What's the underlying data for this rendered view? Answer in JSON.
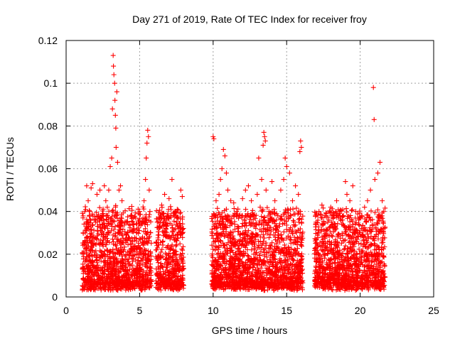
{
  "chart_data": {
    "type": "scatter",
    "title": "Day 271 of 2019, Rate Of TEC Index for receiver froy",
    "xlabel": "GPS time / hours",
    "ylabel": "ROTI / TECUs",
    "xlim": [
      0,
      25
    ],
    "ylim": [
      0,
      0.12
    ],
    "xticks": [
      0,
      5,
      10,
      15,
      20,
      25
    ],
    "xtick_labels": [
      "0",
      "5",
      "10",
      "15",
      "20",
      "25"
    ],
    "yticks": [
      0,
      0.02,
      0.04,
      0.06,
      0.08,
      0.1,
      0.12
    ],
    "ytick_labels": [
      "0",
      "0.02",
      "0.04",
      "0.06",
      "0.08",
      "0.1",
      "0.12"
    ],
    "grid": true,
    "marker": "plus",
    "color": "#ff0000",
    "data_segments_hours": [
      [
        1.1,
        5.8
      ],
      [
        6.1,
        8.0
      ],
      [
        9.9,
        16.1
      ],
      [
        16.9,
        21.7
      ]
    ],
    "series": [
      {
        "name": "ROTI",
        "points": [
          [
            1.2,
            0.012
          ],
          [
            1.3,
            0.03
          ],
          [
            1.4,
            0.052
          ],
          [
            1.5,
            0.045
          ],
          [
            1.6,
            0.04
          ],
          [
            1.7,
            0.051
          ],
          [
            1.8,
            0.053
          ],
          [
            1.9,
            0.028
          ],
          [
            2.0,
            0.035
          ],
          [
            2.1,
            0.048
          ],
          [
            2.3,
            0.05
          ],
          [
            2.5,
            0.038
          ],
          [
            2.6,
            0.052
          ],
          [
            2.7,
            0.045
          ],
          [
            2.8,
            0.042
          ],
          [
            2.9,
            0.05
          ],
          [
            3.0,
            0.061
          ],
          [
            3.1,
            0.065
          ],
          [
            3.15,
            0.088
          ],
          [
            3.2,
            0.113
          ],
          [
            3.22,
            0.108
          ],
          [
            3.25,
            0.104
          ],
          [
            3.3,
            0.1
          ],
          [
            3.32,
            0.092
          ],
          [
            3.35,
            0.085
          ],
          [
            3.38,
            0.079
          ],
          [
            3.4,
            0.07
          ],
          [
            3.45,
            0.096
          ],
          [
            3.5,
            0.063
          ],
          [
            3.6,
            0.05
          ],
          [
            3.7,
            0.052
          ],
          [
            3.8,
            0.045
          ],
          [
            4.0,
            0.035
          ],
          [
            4.2,
            0.03
          ],
          [
            4.4,
            0.038
          ],
          [
            4.6,
            0.034
          ],
          [
            4.8,
            0.03
          ],
          [
            5.0,
            0.04
          ],
          [
            5.2,
            0.028
          ],
          [
            5.3,
            0.045
          ],
          [
            5.4,
            0.055
          ],
          [
            5.45,
            0.065
          ],
          [
            5.5,
            0.072
          ],
          [
            5.55,
            0.078
          ],
          [
            5.6,
            0.075
          ],
          [
            5.65,
            0.05
          ],
          [
            5.7,
            0.04
          ],
          [
            5.75,
            0.03
          ],
          [
            6.2,
            0.035
          ],
          [
            6.5,
            0.043
          ],
          [
            6.7,
            0.048
          ],
          [
            6.9,
            0.038
          ],
          [
            7.0,
            0.046
          ],
          [
            7.2,
            0.055
          ],
          [
            7.4,
            0.04
          ],
          [
            7.6,
            0.033
          ],
          [
            7.8,
            0.05
          ],
          [
            7.9,
            0.047
          ],
          [
            10.0,
            0.075
          ],
          [
            10.05,
            0.074
          ],
          [
            10.2,
            0.045
          ],
          [
            10.4,
            0.048
          ],
          [
            10.5,
            0.055
          ],
          [
            10.6,
            0.06
          ],
          [
            10.7,
            0.069
          ],
          [
            10.8,
            0.066
          ],
          [
            10.9,
            0.058
          ],
          [
            11.0,
            0.05
          ],
          [
            11.2,
            0.045
          ],
          [
            11.4,
            0.044
          ],
          [
            11.6,
            0.04
          ],
          [
            11.8,
            0.038
          ],
          [
            12.0,
            0.046
          ],
          [
            12.2,
            0.05
          ],
          [
            12.4,
            0.052
          ],
          [
            12.6,
            0.045
          ],
          [
            12.8,
            0.038
          ],
          [
            13.0,
            0.048
          ],
          [
            13.1,
            0.065
          ],
          [
            13.2,
            0.042
          ],
          [
            13.3,
            0.055
          ],
          [
            13.4,
            0.071
          ],
          [
            13.45,
            0.077
          ],
          [
            13.5,
            0.075
          ],
          [
            13.55,
            0.073
          ],
          [
            13.6,
            0.05
          ],
          [
            13.8,
            0.04
          ],
          [
            14.0,
            0.054
          ],
          [
            14.2,
            0.045
          ],
          [
            14.4,
            0.038
          ],
          [
            14.6,
            0.05
          ],
          [
            14.8,
            0.055
          ],
          [
            14.9,
            0.065
          ],
          [
            15.0,
            0.061
          ],
          [
            15.2,
            0.058
          ],
          [
            15.4,
            0.045
          ],
          [
            15.6,
            0.052
          ],
          [
            15.8,
            0.048
          ],
          [
            15.9,
            0.068
          ],
          [
            15.95,
            0.073
          ],
          [
            16.0,
            0.07
          ],
          [
            17.0,
            0.035
          ],
          [
            17.2,
            0.04
          ],
          [
            17.4,
            0.043
          ],
          [
            17.6,
            0.038
          ],
          [
            17.8,
            0.035
          ],
          [
            18.0,
            0.042
          ],
          [
            18.2,
            0.038
          ],
          [
            18.4,
            0.045
          ],
          [
            18.6,
            0.04
          ],
          [
            18.8,
            0.036
          ],
          [
            19.0,
            0.054
          ],
          [
            19.1,
            0.048
          ],
          [
            19.3,
            0.045
          ],
          [
            19.5,
            0.052
          ],
          [
            19.7,
            0.04
          ],
          [
            19.9,
            0.036
          ],
          [
            20.1,
            0.038
          ],
          [
            20.3,
            0.042
          ],
          [
            20.5,
            0.045
          ],
          [
            20.7,
            0.05
          ],
          [
            20.9,
            0.098
          ],
          [
            20.95,
            0.083
          ],
          [
            21.0,
            0.055
          ],
          [
            21.2,
            0.058
          ],
          [
            21.35,
            0.063
          ],
          [
            21.5,
            0.045
          ],
          [
            21.6,
            0.04
          ]
        ]
      }
    ]
  }
}
